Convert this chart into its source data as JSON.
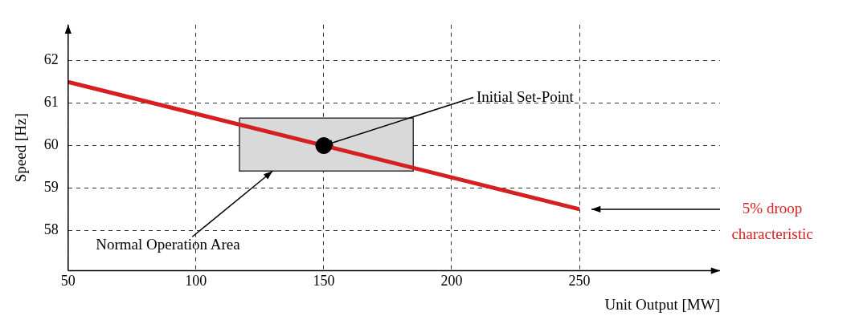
{
  "chart_data": {
    "type": "line",
    "xlabel": "Unit Output [MW]",
    "ylabel": "Speed [Hz]",
    "xlim": [
      50,
      305
    ],
    "ylim": [
      57.05,
      62.85
    ],
    "xticks": [
      50,
      100,
      150,
      200,
      250
    ],
    "yticks": [
      58,
      59,
      60,
      61,
      62
    ],
    "grid": true,
    "series": [
      {
        "type": "area",
        "color": "#d9d9d9",
        "x": [
          117,
          185,
          185,
          117,
          117
        ],
        "values": [
          60.65,
          60.65,
          59.4,
          59.4,
          60.65
        ]
      },
      {
        "type": "line",
        "name": "5% droop characteristic",
        "color": "#d42020",
        "x": [
          50,
          250
        ],
        "values": [
          61.5,
          58.5
        ],
        "marker": "none"
      },
      {
        "type": "scatter",
        "color": "#000000",
        "x": [
          150
        ],
        "values": [
          60
        ],
        "marker": "circle"
      }
    ],
    "annotations": [
      {
        "text": "Initial Set-Point",
        "x": 150,
        "y": 60
      },
      {
        "text": "Normal Operation Area",
        "x": 130,
        "y": 59.4
      }
    ]
  }
}
